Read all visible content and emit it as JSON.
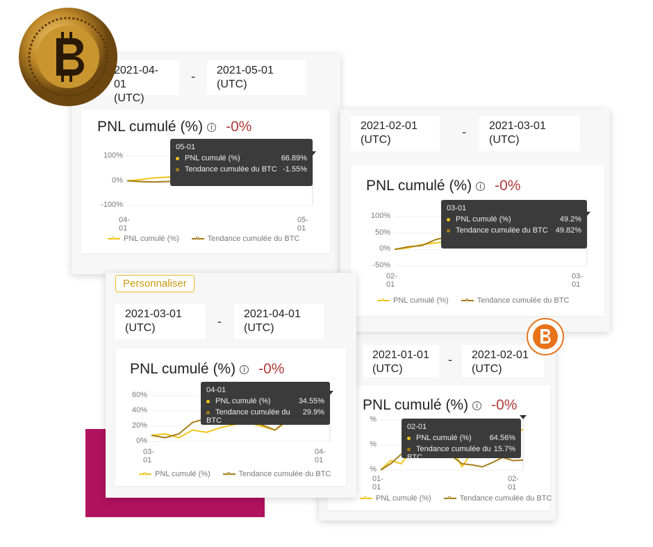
{
  "colors": {
    "pnl": "#f0c419",
    "btc": "#a57c15",
    "negative": "#b03a3a",
    "accent_block": "#b0125f",
    "tooltip_bg": "#3b3b3b"
  },
  "customize_button": "Personnaliser",
  "icons": [
    "bitcoin-coin-icon",
    "bitcoin-logo-icon",
    "info-icon"
  ],
  "cards": [
    {
      "start_date": "2021-04-01",
      "start_tz": "(UTC)",
      "dash": "-",
      "end_date": "2021-05-01",
      "end_tz": "(UTC)",
      "title": "PNL cumulé (%)",
      "change": "-0%",
      "tooltip": {
        "date": "05-01",
        "pnl_label": "PNL cumulé (%)",
        "pnl_value": "66.89%",
        "btc_label": "Tendance cumulée du BTC",
        "btc_value": "-1.55%"
      },
      "legend": [
        "PNL cumulé (%)",
        "Tendance cumulée du BTC"
      ]
    },
    {
      "start_date": "2021-02-01",
      "start_tz": "(UTC)",
      "dash": "-",
      "end_date": "2021-03-01",
      "end_tz": "(UTC)",
      "title": "PNL cumulé (%)",
      "change": "-0%",
      "tooltip": {
        "date": "03-01",
        "pnl_label": "PNL cumulé (%)",
        "pnl_value": "49.2%",
        "btc_label": "Tendance cumulée du BTC",
        "btc_value": "49.82%"
      },
      "legend": [
        "PNL cumulé (%)",
        "Tendance cumulée du BTC"
      ]
    },
    {
      "start_date": "2021-01-01",
      "start_tz": "(UTC)",
      "dash": "-",
      "end_date": "2021-02-01",
      "end_tz": "(UTC)",
      "title": "PNL cumulé (%)",
      "change": "-0%",
      "tooltip": {
        "date": "02-01",
        "pnl_label": "PNL cumulé (%)",
        "pnl_value": "64.56%",
        "btc_label": "Tendance cumulée du BTC",
        "btc_value": "15.7%"
      },
      "legend": [
        "PNL cumulé (%)",
        "Tendance cumulée du BTC"
      ]
    },
    {
      "start_date": "2021-03-01",
      "start_tz": "(UTC)",
      "dash": "-",
      "end_date": "2021-04-01",
      "end_tz": "(UTC)",
      "title": "PNL cumulé (%)",
      "change": "-0%",
      "tooltip": {
        "date": "04-01",
        "pnl_label": "PNL cumulé (%)",
        "pnl_value": "34.55%",
        "btc_label": "Tendance cumulée du BTC",
        "btc_value": "29.9%"
      },
      "legend": [
        "PNL cumulé (%)",
        "Tendance cumulée du BTC"
      ]
    }
  ],
  "chart_data": [
    {
      "type": "line",
      "xlabels": [
        "04-01",
        "05-01"
      ],
      "yticks": [
        "100%",
        "0%",
        "-100%"
      ],
      "ylim": [
        -100,
        100
      ],
      "grid": true,
      "legend": "bottom",
      "series": [
        {
          "name": "PNL cumulé (%)",
          "values": [
            0,
            5,
            12,
            15,
            18,
            20,
            18,
            22,
            30,
            28,
            40,
            50,
            55,
            60,
            66.89
          ]
        },
        {
          "name": "Tendance cumulée du BTC",
          "values": [
            0,
            -3,
            -5,
            -3,
            0,
            5,
            3,
            -5,
            -10,
            -15,
            -18,
            -5,
            -8,
            -5,
            -1.55
          ]
        }
      ]
    },
    {
      "type": "line",
      "xlabels": [
        "02-01",
        "03-01"
      ],
      "yticks": [
        "100%",
        "50%",
        "0%",
        "-50%"
      ],
      "ylim": [
        -50,
        100
      ],
      "grid": true,
      "legend": "bottom",
      "series": [
        {
          "name": "PNL cumulé (%)",
          "values": [
            0,
            5,
            15,
            20,
            25,
            30,
            28,
            30,
            38,
            35,
            48,
            45,
            40,
            45,
            49.2
          ]
        },
        {
          "name": "Tendance cumulée du BTC",
          "values": [
            0,
            8,
            12,
            30,
            40,
            45,
            50,
            55,
            65,
            70,
            50,
            40,
            35,
            40,
            49.82
          ]
        }
      ]
    },
    {
      "type": "line",
      "xlabels": [
        "01-01",
        "02-01"
      ],
      "yticks": [
        "%",
        "%",
        "%"
      ],
      "ylim": [
        0,
        80
      ],
      "grid": true,
      "legend": "bottom",
      "series": [
        {
          "name": "PNL cumulé (%)",
          "values": [
            0,
            15,
            10,
            30,
            25,
            28,
            32,
            35,
            5,
            30,
            25,
            40,
            50,
            60,
            64.56
          ]
        },
        {
          "name": "Tendance cumulée du BTC",
          "values": [
            0,
            10,
            25,
            35,
            20,
            30,
            25,
            22,
            10,
            8,
            5,
            12,
            20,
            15,
            15.7
          ]
        }
      ]
    },
    {
      "type": "line",
      "xlabels": [
        "03-01",
        "04-01"
      ],
      "yticks": [
        "60%",
        "40%",
        "20%",
        "0%"
      ],
      "ylim": [
        0,
        60
      ],
      "grid": true,
      "legend": "bottom",
      "series": [
        {
          "name": "PNL cumulé (%)",
          "values": [
            8,
            10,
            5,
            15,
            12,
            18,
            22,
            25,
            20,
            15,
            28,
            30,
            35,
            34.55
          ]
        },
        {
          "name": "Tendance cumulée du BTC",
          "values": [
            8,
            5,
            10,
            25,
            30,
            35,
            25,
            30,
            22,
            15,
            30,
            32,
            31,
            29.9
          ]
        }
      ]
    }
  ]
}
